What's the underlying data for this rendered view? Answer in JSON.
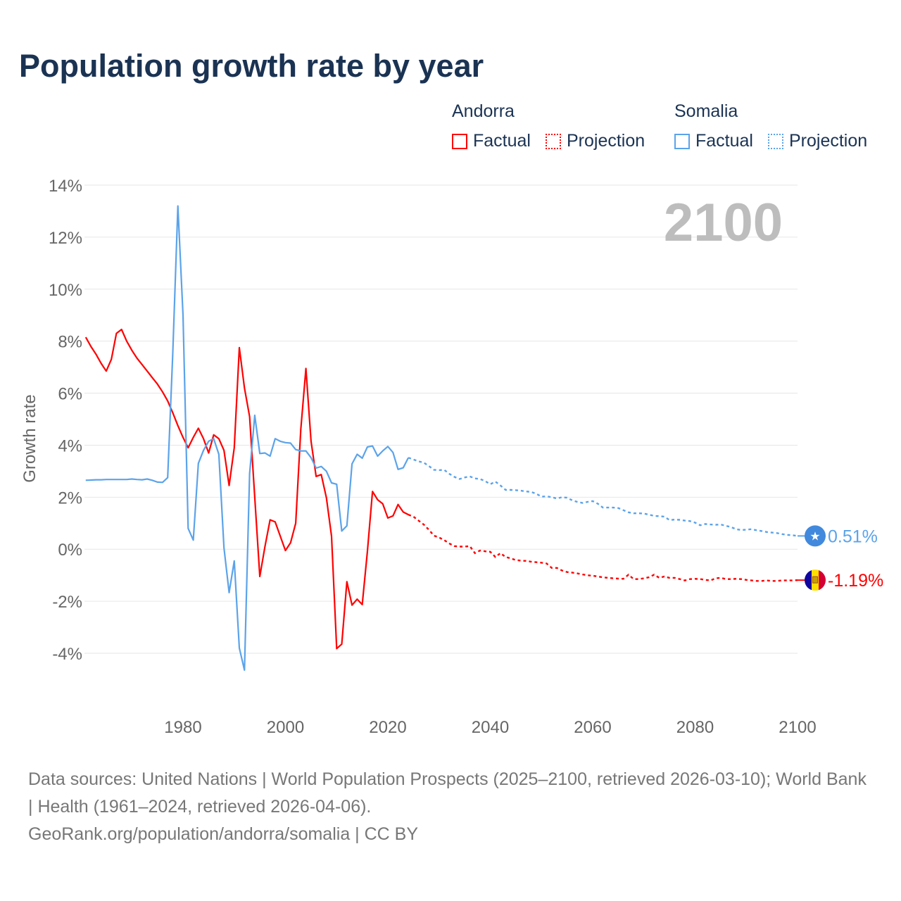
{
  "title": "Population growth rate by year",
  "legend": {
    "groups": [
      {
        "name": "Andorra",
        "factual": "Factual",
        "projection": "Projection",
        "color": "#ff0000"
      },
      {
        "name": "Somalia",
        "factual": "Factual",
        "projection": "Projection",
        "color": "#5ba3ea"
      }
    ]
  },
  "year_label": "2100",
  "end_labels": {
    "somalia": "0.51%",
    "andorra": "-1.19%"
  },
  "footer": {
    "sources": "Data sources: United Nations | World Population Prospects (2025–2100, retrieved 2026-03-10); World Bank | Health (1961–2024, retrieved 2026-04-06).",
    "credit": "GeoRank.org/population/andorra/somalia | CC BY"
  },
  "chart_data": {
    "type": "line",
    "title": "Population growth rate by year",
    "xlabel": "",
    "ylabel": "Growth rate",
    "xlim": [
      1961,
      2100
    ],
    "ylim": [
      -4,
      14
    ],
    "x_ticks": [
      1980,
      2000,
      2020,
      2040,
      2060,
      2080,
      2100
    ],
    "y_ticks": [
      14,
      12,
      10,
      8,
      6,
      4,
      2,
      0,
      -2,
      -4
    ],
    "y_tick_labels": [
      "14%",
      "12%",
      "10%",
      "8%",
      "6%",
      "4%",
      "2%",
      "0%",
      "-2%",
      "-4%"
    ],
    "x_tick_labels": [
      "1980",
      "2000",
      "2020",
      "2040",
      "2060",
      "2080",
      "2100"
    ],
    "grid": true,
    "legend_position": "top-right",
    "factual_start": 1961,
    "projection_start": 2025,
    "series": [
      {
        "name": "Andorra",
        "color": "#ff0000",
        "factual": [
          8.15,
          7.8,
          7.5,
          7.15,
          6.85,
          7.3,
          8.3,
          8.45,
          8.0,
          7.65,
          7.35,
          7.1,
          6.85,
          6.6,
          6.35,
          6.05,
          5.7,
          5.25,
          4.75,
          4.3,
          3.9,
          4.3,
          4.65,
          4.25,
          3.7,
          4.4,
          4.25,
          3.8,
          2.45,
          3.9,
          7.75,
          6.2,
          5.1,
          2.0,
          -1.05,
          0.1,
          1.13,
          1.05,
          0.5,
          -0.05,
          0.25,
          1.0,
          4.6,
          6.95,
          4.15,
          2.8,
          2.87,
          1.98,
          0.5,
          -3.82,
          -3.65,
          -1.25,
          -2.15,
          -1.92,
          -2.13,
          -0.1,
          2.22,
          1.9,
          1.75,
          1.2,
          1.28,
          1.72,
          1.43,
          1.33
        ],
        "projection": [
          1.25,
          1.1,
          0.95,
          0.75,
          0.52,
          0.45,
          0.35,
          0.22,
          0.12,
          0.1,
          0.1,
          0.12,
          -0.15,
          -0.05,
          -0.08,
          -0.1,
          -0.3,
          -0.15,
          -0.3,
          -0.35,
          -0.42,
          -0.44,
          -0.45,
          -0.48,
          -0.5,
          -0.52,
          -0.55,
          -0.72,
          -0.72,
          -0.82,
          -0.88,
          -0.9,
          -0.93,
          -0.97,
          -1.0,
          -1.02,
          -1.05,
          -1.08,
          -1.1,
          -1.12,
          -1.13,
          -1.14,
          -0.98,
          -1.15,
          -1.15,
          -1.12,
          -1.08,
          -0.98,
          -1.1,
          -1.05,
          -1.1,
          -1.1,
          -1.15,
          -1.2,
          -1.15,
          -1.14,
          -1.15,
          -1.18,
          -1.2,
          -1.12,
          -1.1,
          -1.15,
          -1.15,
          -1.14,
          -1.15,
          -1.18,
          -1.2,
          -1.22,
          -1.22,
          -1.2,
          -1.22,
          -1.22,
          -1.2,
          -1.2,
          -1.2,
          -1.19
        ]
      },
      {
        "name": "Somalia",
        "color": "#5ba3ea",
        "factual": [
          2.65,
          2.66,
          2.67,
          2.67,
          2.68,
          2.68,
          2.68,
          2.68,
          2.68,
          2.7,
          2.68,
          2.67,
          2.7,
          2.65,
          2.58,
          2.57,
          2.75,
          7.5,
          13.2,
          9.0,
          0.8,
          0.35,
          3.3,
          3.8,
          4.15,
          4.25,
          3.65,
          0.05,
          -1.67,
          -0.45,
          -3.8,
          -4.65,
          2.9,
          5.15,
          3.68,
          3.7,
          3.58,
          4.25,
          4.15,
          4.1,
          4.08,
          3.83,
          3.78,
          3.78,
          3.52,
          3.12,
          3.18,
          3.0,
          2.55,
          2.5,
          0.7,
          0.9,
          3.28,
          3.65,
          3.5,
          3.93,
          3.97,
          3.58,
          3.78,
          3.95,
          3.72,
          3.07,
          3.13,
          3.52
        ],
        "projection": [
          3.45,
          3.38,
          3.33,
          3.2,
          3.05,
          3.04,
          3.05,
          2.9,
          2.78,
          2.7,
          2.76,
          2.8,
          2.72,
          2.7,
          2.62,
          2.5,
          2.6,
          2.45,
          2.28,
          2.28,
          2.27,
          2.25,
          2.22,
          2.2,
          2.13,
          2.02,
          2.03,
          2.0,
          1.95,
          2.0,
          1.98,
          1.88,
          1.82,
          1.78,
          1.82,
          1.85,
          1.75,
          1.6,
          1.6,
          1.6,
          1.58,
          1.5,
          1.42,
          1.38,
          1.38,
          1.37,
          1.33,
          1.28,
          1.27,
          1.25,
          1.12,
          1.14,
          1.13,
          1.1,
          1.08,
          1.02,
          0.92,
          0.97,
          0.95,
          0.94,
          0.95,
          0.9,
          0.85,
          0.77,
          0.74,
          0.75,
          0.77,
          0.73,
          0.7,
          0.66,
          0.64,
          0.62,
          0.58,
          0.55,
          0.54,
          0.51
        ]
      }
    ]
  }
}
